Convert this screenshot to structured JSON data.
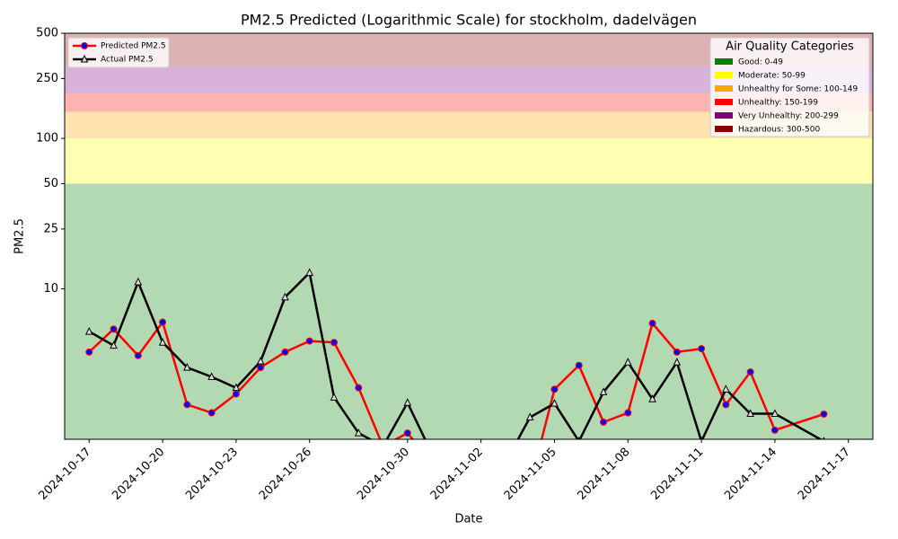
{
  "chart_data": {
    "type": "line",
    "title": "PM2.5 Predicted (Logarithmic Scale) for stockholm, dadelvägen",
    "xlabel": "Date",
    "ylabel": "PM2.5",
    "log_y": true,
    "xlim": [
      "2024-10-16",
      "2024-11-18"
    ],
    "xticks": [
      "2024-10-17",
      "2024-10-20",
      "2024-10-23",
      "2024-10-26",
      "2024-10-30",
      "2024-11-02",
      "2024-11-05",
      "2024-11-08",
      "2024-11-11",
      "2024-11-14",
      "2024-11-17"
    ],
    "ylim": [
      1,
      500
    ],
    "yticks": [
      10,
      25,
      50,
      100,
      250,
      500
    ],
    "legend": "upper left",
    "series": [
      {
        "name": "Predicted PM2.5",
        "color": "red",
        "marker_color": "blue",
        "marker": "circle",
        "x": [
          "2024-10-17",
          "2024-10-18",
          "2024-10-19",
          "2024-10-20",
          "2024-10-21",
          "2024-10-22",
          "2024-10-23",
          "2024-10-24",
          "2024-10-25",
          "2024-10-26",
          "2024-10-27",
          "2024-10-28",
          "2024-10-29",
          "2024-10-30",
          "2024-10-31",
          "2024-11-01",
          "2024-11-02",
          "2024-11-03",
          "2024-11-04",
          "2024-11-05",
          "2024-11-06",
          "2024-11-07",
          "2024-11-08",
          "2024-11-09",
          "2024-11-10",
          "2024-11-11",
          "2024-11-12",
          "2024-11-13",
          "2024-11-14",
          "2024-11-16"
        ],
        "values": [
          3.8,
          5.4,
          3.6,
          6.0,
          1.7,
          1.5,
          2.0,
          3.0,
          3.8,
          4.5,
          4.4,
          2.2,
          0.9,
          1.1,
          0.7,
          null,
          null,
          null,
          0.5,
          2.15,
          3.1,
          1.3,
          1.5,
          5.9,
          3.8,
          4.0,
          1.7,
          2.8,
          1.15,
          1.47
        ]
      },
      {
        "name": "Actual PM2.5",
        "color": "black",
        "marker_color": "#dddddd",
        "marker": "triangle",
        "x": [
          "2024-10-17",
          "2024-10-18",
          "2024-10-19",
          "2024-10-20",
          "2024-10-21",
          "2024-10-22",
          "2024-10-23",
          "2024-10-24",
          "2024-10-25",
          "2024-10-26",
          "2024-10-27",
          "2024-10-28",
          "2024-10-29",
          "2024-10-30",
          "2024-10-31",
          "2024-11-01",
          "2024-11-02",
          "2024-11-03",
          "2024-11-04",
          "2024-11-05",
          "2024-11-06",
          "2024-11-07",
          "2024-11-08",
          "2024-11-09",
          "2024-11-10",
          "2024-11-11",
          "2024-11-12",
          "2024-11-13",
          "2024-11-14",
          "2024-11-16"
        ],
        "values": [
          5.2,
          4.2,
          11.1,
          4.4,
          3.0,
          2.6,
          2.2,
          3.3,
          8.8,
          12.8,
          1.9,
          1.1,
          0.9,
          1.75,
          0.8,
          null,
          null,
          0.7,
          1.4,
          1.73,
          0.97,
          2.06,
          3.25,
          1.85,
          3.25,
          0.97,
          2.15,
          1.48,
          1.48,
          0.97
        ]
      }
    ],
    "bands_title": "Air Quality Categories",
    "bands_legend": "upper right",
    "bands": [
      {
        "label": "Good: 0-49",
        "color": "green",
        "from": 0,
        "to": 50
      },
      {
        "label": "Moderate: 50-99",
        "color": "yellow",
        "from": 50,
        "to": 100
      },
      {
        "label": "Unhealthy for Some: 100-149",
        "color": "orange",
        "from": 100,
        "to": 150
      },
      {
        "label": "Unhealthy: 150-199",
        "color": "red",
        "from": 150,
        "to": 200
      },
      {
        "label": "Very Unhealthy: 200-299",
        "color": "purple",
        "from": 200,
        "to": 300
      },
      {
        "label": "Hazardous: 300-500",
        "color": "darkred",
        "from": 300,
        "to": 500
      }
    ]
  }
}
